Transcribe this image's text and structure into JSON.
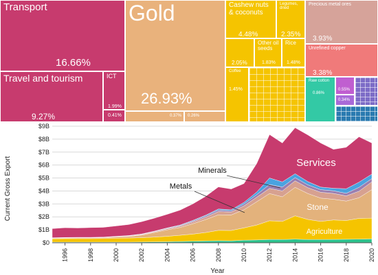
{
  "treemap": {
    "tiles": [
      {
        "id": "transport",
        "label": "Transport",
        "pct": "16.66%",
        "color": "#c73b6e"
      },
      {
        "id": "travel",
        "label": "Travel and tourism",
        "pct": "9.27%",
        "color": "#c73b6e"
      },
      {
        "id": "ict",
        "label": "ICT",
        "pct": "1.99%",
        "color": "#c73b6e"
      },
      {
        "id": "ict-small",
        "label": "",
        "pct": "0.41%",
        "color": "#c73b6e"
      },
      {
        "id": "gold",
        "label": "Gold",
        "pct": "26.93%",
        "color": "#e9b27c"
      },
      {
        "id": "gold-small-1",
        "label": "",
        "pct": "0.37%",
        "color": "#e9b27c"
      },
      {
        "id": "gold-small-2",
        "label": "",
        "pct": "0.26%",
        "color": "#e9b27c"
      },
      {
        "id": "cashew",
        "label": "Cashew nuts & coconuts",
        "pct": "4.48%",
        "color": "#f5c400"
      },
      {
        "id": "legumes",
        "label": "Legumes, dried",
        "pct": "2.35%",
        "color": "#f5c400"
      },
      {
        "id": "agri-unlabeled",
        "label": "",
        "pct": "2.05%",
        "color": "#f5c400"
      },
      {
        "id": "oilseeds",
        "label": "Other oil seeds",
        "pct": "1.83%",
        "color": "#f5c400"
      },
      {
        "id": "rice",
        "label": "Rice",
        "pct": "1.48%",
        "color": "#f5c400"
      },
      {
        "id": "coffee",
        "label": "Coffee",
        "pct": "1.45%",
        "color": "#f5c400"
      },
      {
        "id": "metal-ores",
        "label": "Precious metal ores",
        "pct": "3.93%",
        "color": "#d6a39a"
      },
      {
        "id": "copper",
        "label": "Unrefined copper",
        "pct": "3.38%",
        "color": "#f07a7a"
      },
      {
        "id": "cotton",
        "label": "Raw cotton",
        "pct": "0.86%",
        "color": "#33c9a5"
      },
      {
        "id": "textiles",
        "label": "",
        "pct": "0.55%",
        "color": "#c05fd0"
      },
      {
        "id": "textiles-2",
        "label": "",
        "pct": "0.34%",
        "color": "#a96ad8"
      }
    ]
  },
  "chart_data": {
    "type": "area",
    "xlabel": "Year",
    "ylabel": "Current Gross Export",
    "ylim": [
      0,
      9
    ],
    "xlim": [
      1995,
      2020
    ],
    "y_ticks": [
      "$0",
      "$1B",
      "$2B",
      "$3B",
      "$4B",
      "$5B",
      "$6B",
      "$7B",
      "$8B",
      "$9B"
    ],
    "x_ticks": [
      "1996",
      "1998",
      "2000",
      "2002",
      "2004",
      "2006",
      "2008",
      "2010",
      "2012",
      "2014",
      "2016",
      "2018",
      "2020"
    ],
    "x": [
      1995,
      1996,
      1997,
      1998,
      1999,
      2000,
      2001,
      2002,
      2003,
      2004,
      2005,
      2006,
      2007,
      2008,
      2009,
      2010,
      2011,
      2012,
      2013,
      2014,
      2015,
      2016,
      2017,
      2018,
      2019,
      2020
    ],
    "series": [
      {
        "name": "",
        "color": "#2ec28c",
        "values": [
          0.05,
          0.05,
          0.05,
          0.05,
          0.05,
          0.05,
          0.05,
          0.06,
          0.07,
          0.08,
          0.1,
          0.12,
          0.14,
          0.16,
          0.15,
          0.2,
          0.22,
          0.25,
          0.25,
          0.28,
          0.25,
          0.25,
          0.26,
          0.27,
          0.28,
          0.3
        ]
      },
      {
        "name": "Agriculture",
        "color": "#f5c400",
        "values": [
          0.25,
          0.27,
          0.27,
          0.27,
          0.28,
          0.3,
          0.32,
          0.33,
          0.37,
          0.42,
          0.48,
          0.55,
          0.65,
          0.8,
          0.8,
          0.95,
          1.15,
          1.45,
          1.4,
          1.8,
          1.55,
          1.4,
          1.5,
          1.45,
          1.6,
          1.6
        ]
      },
      {
        "name": "Stone",
        "color": "#e3b27c",
        "values": [
          0.05,
          0.05,
          0.06,
          0.06,
          0.07,
          0.1,
          0.12,
          0.2,
          0.35,
          0.5,
          0.6,
          0.8,
          1.0,
          1.2,
          1.2,
          1.4,
          1.8,
          2.1,
          1.9,
          2.2,
          2.0,
          1.8,
          1.6,
          1.5,
          1.6,
          2.2
        ]
      },
      {
        "name": "",
        "color": "#d7a190",
        "values": [
          0.02,
          0.02,
          0.02,
          0.02,
          0.02,
          0.03,
          0.04,
          0.05,
          0.06,
          0.08,
          0.1,
          0.14,
          0.18,
          0.25,
          0.22,
          0.3,
          0.35,
          0.4,
          0.45,
          0.5,
          0.45,
          0.45,
          0.45,
          0.4,
          0.5,
          0.6
        ]
      },
      {
        "name": "Metals",
        "color": "#9b7fb0",
        "values": [
          0.01,
          0.01,
          0.01,
          0.01,
          0.01,
          0.01,
          0.02,
          0.02,
          0.03,
          0.04,
          0.05,
          0.07,
          0.1,
          0.12,
          0.1,
          0.15,
          0.2,
          0.3,
          0.3,
          0.25,
          0.22,
          0.2,
          0.2,
          0.2,
          0.3,
          0.25
        ]
      },
      {
        "name": "Minerals",
        "color": "#4aa3e0",
        "values": [
          0.01,
          0.01,
          0.01,
          0.01,
          0.01,
          0.01,
          0.01,
          0.02,
          0.02,
          0.03,
          0.04,
          0.05,
          0.06,
          0.08,
          0.08,
          0.12,
          0.2,
          0.5,
          0.4,
          0.3,
          0.25,
          0.2,
          0.2,
          0.35,
          0.4,
          0.35
        ]
      },
      {
        "name": "Services",
        "color": "#c73b6e",
        "values": [
          0.7,
          0.75,
          0.72,
          0.75,
          0.75,
          0.8,
          0.85,
          0.95,
          1.0,
          1.05,
          1.15,
          1.27,
          1.45,
          1.7,
          1.6,
          1.45,
          2.2,
          3.35,
          3.0,
          3.55,
          3.6,
          3.4,
          3.0,
          3.2,
          3.5,
          2.4
        ]
      }
    ],
    "annotations": [
      "Services",
      "Stone",
      "Agriculture",
      "Minerals",
      "Metals"
    ]
  }
}
